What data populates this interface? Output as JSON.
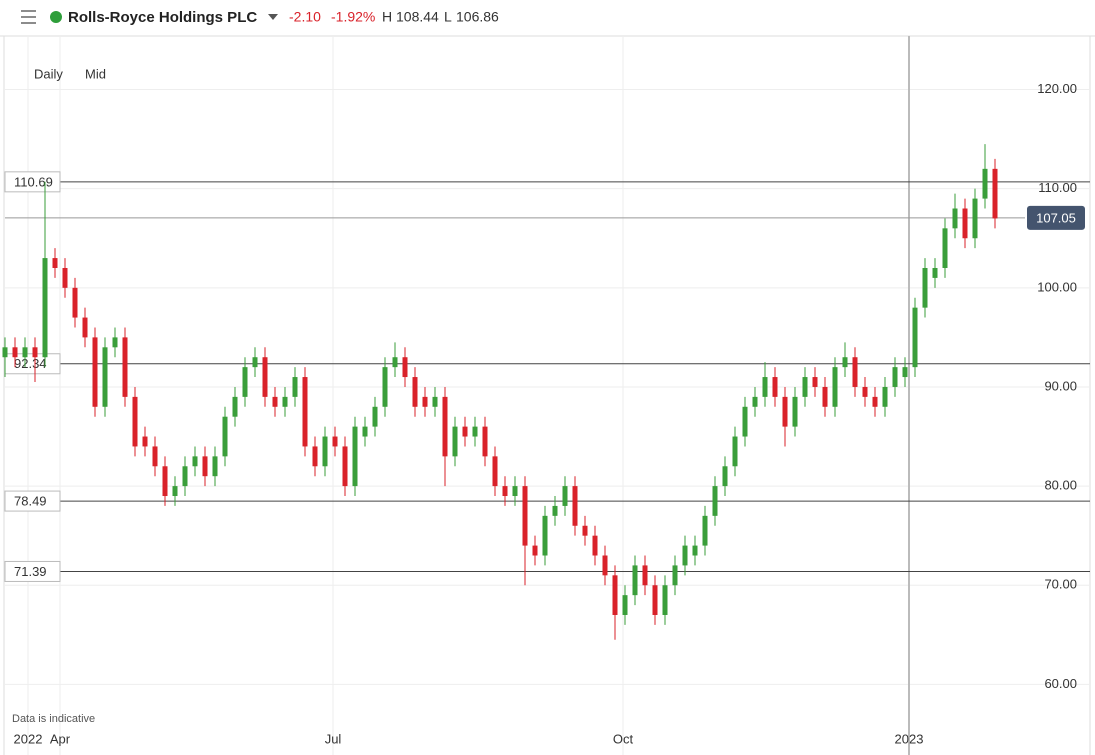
{
  "header": {
    "title": "Rolls-Royce Holdings PLC",
    "change": "-2.10",
    "change_pct": "-1.92%",
    "high_label": "H",
    "high": "108.44",
    "low_label": "L",
    "low": "106.86"
  },
  "controls": {
    "interval": "Daily",
    "price_type": "Mid"
  },
  "footnote": "Data is indicative",
  "chart_data": {
    "type": "candlestick",
    "open": [
      93,
      94,
      93,
      94,
      93,
      103,
      102,
      100,
      97,
      95,
      88,
      94,
      95,
      89,
      85,
      84,
      82,
      79,
      80,
      82,
      83,
      81,
      83,
      87,
      89,
      92,
      93,
      89,
      88,
      89,
      91,
      84,
      82,
      85,
      84,
      80,
      85,
      86,
      88,
      92,
      93,
      91,
      89,
      88,
      89,
      83,
      86,
      85,
      86,
      83,
      80,
      79,
      80,
      74,
      73,
      77,
      78,
      80,
      76,
      75,
      73,
      71,
      67,
      69,
      72,
      70,
      67,
      70,
      72,
      73,
      74,
      77,
      80,
      82,
      85,
      88,
      89,
      91,
      89,
      86,
      89,
      91,
      90,
      88,
      92,
      93,
      90,
      89,
      88,
      90,
      91,
      92,
      98,
      101,
      102,
      106,
      108,
      105,
      109,
      112
    ],
    "high": [
      95,
      95,
      95,
      95,
      110.7,
      104,
      103,
      101,
      98,
      96,
      95,
      96,
      96,
      90,
      86,
      85,
      83,
      81,
      83,
      84,
      84,
      84,
      88,
      90,
      93,
      94,
      94,
      90,
      90,
      92,
      92,
      85,
      86,
      86,
      85,
      87,
      87,
      89,
      93,
      94.5,
      94,
      92,
      90,
      90,
      90,
      87,
      87,
      87,
      87,
      84,
      81,
      81,
      81,
      75,
      78,
      79,
      81,
      81,
      77,
      76,
      74,
      72,
      70,
      73,
      73,
      71,
      71,
      73,
      75,
      75,
      78,
      81,
      83,
      86,
      89,
      90,
      92.5,
      92,
      90,
      90,
      92,
      92,
      91,
      93,
      94.5,
      94,
      91,
      90,
      91,
      93,
      93,
      99,
      103,
      103,
      107,
      109.5,
      109,
      110,
      114.5,
      113
    ],
    "low": [
      91,
      92,
      92,
      90.5,
      92,
      101,
      99,
      96,
      94,
      87,
      87,
      93,
      88,
      83,
      83,
      81,
      78,
      78,
      79,
      81,
      80,
      80,
      82,
      86,
      88,
      91,
      88,
      87,
      87,
      88,
      83,
      81,
      81,
      83,
      79,
      79,
      84,
      85,
      87,
      91,
      90,
      87,
      87,
      87,
      80,
      82,
      84,
      84,
      82,
      79,
      78,
      78,
      70,
      72,
      72,
      76,
      77,
      75,
      74,
      72,
      70,
      64.5,
      66,
      68,
      69,
      66,
      66,
      69,
      71,
      72,
      73,
      76,
      79,
      81,
      84,
      87,
      88,
      88,
      84,
      85,
      88,
      89,
      87,
      87,
      91,
      89,
      88,
      87,
      87,
      89,
      90,
      91,
      97,
      100,
      101,
      105,
      104,
      104,
      108,
      106
    ],
    "close": [
      94,
      93,
      94,
      93,
      103,
      102,
      100,
      97,
      95,
      88,
      94,
      95,
      89,
      84,
      84,
      82,
      79,
      80,
      82,
      83,
      81,
      83,
      87,
      89,
      92,
      93,
      89,
      88,
      89,
      91,
      84,
      82,
      85,
      84,
      80,
      86,
      86,
      88,
      92,
      93,
      91,
      88,
      88,
      89,
      83,
      86,
      85,
      86,
      83,
      80,
      79,
      80,
      74,
      73,
      77,
      78,
      80,
      76,
      75,
      73,
      71,
      67,
      69,
      72,
      70,
      67,
      70,
      72,
      74,
      74,
      77,
      80,
      82,
      85,
      88,
      89,
      91,
      89,
      86,
      89,
      91,
      90,
      88,
      92,
      93,
      90,
      89,
      88,
      90,
      92,
      92,
      98,
      102,
      102,
      106,
      108,
      105,
      109,
      112,
      107
    ],
    "up_color": "#3a9e3a",
    "down_color": "#d9222a",
    "xlim": [
      0,
      100.5
    ],
    "xticks": [
      {
        "value": 2.3,
        "label": "2022"
      },
      {
        "value": 5.5,
        "label": "Apr"
      },
      {
        "value": 32.8,
        "label": "Jul"
      },
      {
        "value": 61.8,
        "label": "Oct"
      },
      {
        "value": 90.4,
        "label": "2023"
      }
    ],
    "ylim": [
      55.5,
      125.4
    ],
    "yticks": [
      {
        "value": 60,
        "label": "60.00"
      },
      {
        "value": 70,
        "label": "70.00"
      },
      {
        "value": 80,
        "label": "80.00"
      },
      {
        "value": 90,
        "label": "90.00"
      },
      {
        "value": 100,
        "label": "100.00"
      },
      {
        "value": 110,
        "label": "110.00"
      },
      {
        "value": 120,
        "label": "120.00"
      }
    ],
    "levels": [
      110.69,
      92.34,
      78.49,
      71.39
    ],
    "last_price": 107.05,
    "grid": true
  }
}
